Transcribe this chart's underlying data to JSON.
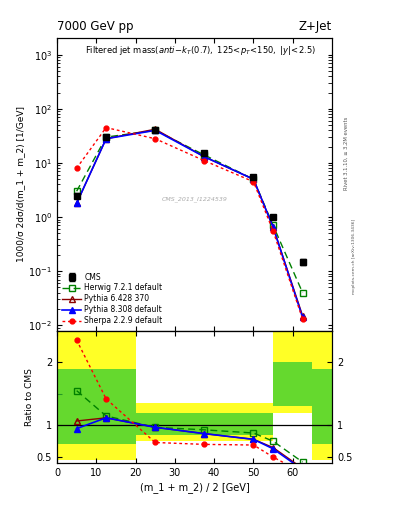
{
  "title_top": "7000 GeV pp",
  "title_right": "Z+Jet",
  "plot_title": "Filtered jet mass",
  "plot_subtitle": "(anti-k$_{T}$(0.7), 125<p$_{T}$<150, |y|<2.5)",
  "xlabel": "(m_1 + m_2) / 2 [GeV]",
  "ylabel_main": "1000/σ 2dσ/d(m_1 + m_2) [1/GeV]",
  "ylabel_ratio": "Ratio to CMS",
  "watermark": "CMS_2013_I1224539",
  "rivet_text": "Rivet 3.1.10, ≥ 3.2M events",
  "mcplots_text": "mcplots.cern.ch [arXiv:1306.3436]",
  "x_vals": [
    5,
    12.5,
    25,
    37.5,
    50,
    55,
    62.5
  ],
  "cms_y": [
    2.5,
    30,
    40,
    15,
    5.5,
    1.0,
    0.15
  ],
  "cms_yerr": [
    0.25,
    2.0,
    2.5,
    1.2,
    0.4,
    0.08,
    0.02
  ],
  "herwig_y": [
    3.0,
    30,
    40,
    14,
    5.0,
    0.7,
    0.04
  ],
  "pythia6_y": [
    1.8,
    28,
    42,
    13,
    5.0,
    0.65,
    0.015
  ],
  "pythia8_y": [
    1.8,
    28,
    40,
    13,
    5.0,
    0.65,
    0.014
  ],
  "sherpa_y": [
    8.0,
    45,
    28,
    11,
    4.5,
    0.55,
    0.013
  ],
  "herwig_ratio": [
    1.55,
    1.15,
    0.97,
    0.93,
    0.88,
    0.75,
    0.42
  ],
  "pythia6_ratio": [
    1.07,
    1.12,
    0.97,
    0.87,
    0.78,
    0.65,
    0.32
  ],
  "pythia8_ratio": [
    0.95,
    1.12,
    0.97,
    0.87,
    0.78,
    0.63,
    0.3
  ],
  "sherpa_ratio": [
    2.35,
    1.42,
    0.73,
    0.7,
    0.69,
    0.5,
    0.25
  ],
  "ylim_main": [
    0.008,
    2000
  ],
  "ylim_ratio": [
    0.4,
    2.5
  ],
  "xlim": [
    0,
    70
  ],
  "xticks": [
    0,
    10,
    20,
    30,
    40,
    50,
    60
  ],
  "band_edges": [
    0,
    10,
    20,
    55,
    65,
    70
  ],
  "band_yellow_lo": [
    0.45,
    0.45,
    0.75,
    1.2,
    0.45
  ],
  "band_yellow_hi": [
    2.5,
    2.5,
    1.35,
    2.5,
    2.5
  ],
  "band_green_lo": [
    0.7,
    0.7,
    0.85,
    1.3,
    0.7
  ],
  "band_green_hi": [
    1.9,
    1.9,
    1.2,
    2.0,
    1.9
  ]
}
